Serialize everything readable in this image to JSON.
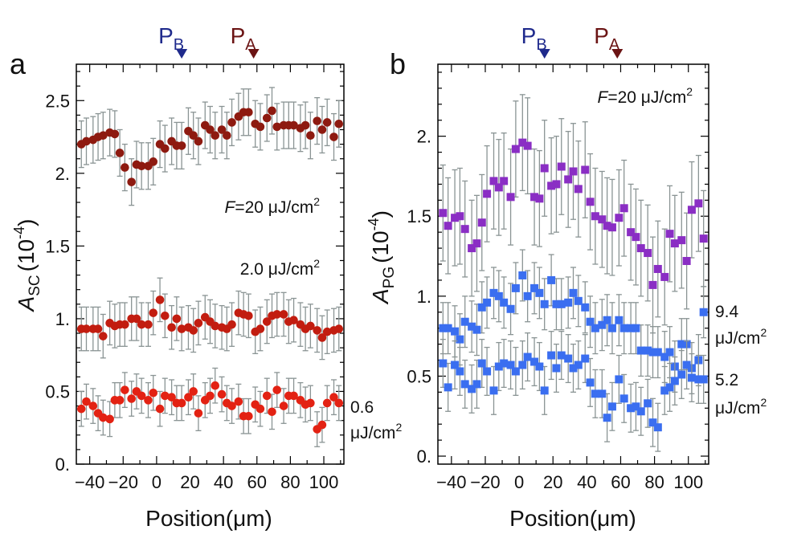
{
  "chart_data": [
    {
      "type": "scatter",
      "panel_label": "a",
      "xlabel": "Position(μm)",
      "ylabel_main": "A",
      "ylabel_sub": "SC",
      "ylabel_unit": "(10",
      "ylabel_exp": "-4",
      "ylabel_close": ")",
      "xlim": [
        -48,
        112
      ],
      "ylim": [
        0,
        2.75
      ],
      "xticks": [
        -40,
        -20,
        0,
        20,
        40,
        60,
        80,
        100
      ],
      "xtick_labels": [
        "−40",
        "−20",
        "0",
        "20",
        "40",
        "60",
        "80",
        "100"
      ],
      "yticks": [
        0,
        0.5,
        1,
        1.5,
        2,
        2.5
      ],
      "ytick_labels": [
        "0.",
        "0.5",
        "1.",
        "1.5",
        "2.",
        "2.5"
      ],
      "markers": [
        {
          "main": "P",
          "sub": "B",
          "x": 15,
          "color": "#1f2a8c"
        },
        {
          "main": "P",
          "sub": "A",
          "x": 58,
          "color": "#6b1414"
        }
      ],
      "annotations": [
        {
          "id": "f20",
          "prefix": "F",
          "text": "=20 μJ/cm",
          "sup": "2"
        },
        {
          "id": "f2",
          "text": "2.0 μJ/cm",
          "sup": "2"
        },
        {
          "id": "f06a",
          "text": "0.6"
        },
        {
          "id": "f06b",
          "text": "μJ/cm",
          "sup": "2"
        }
      ],
      "series": [
        {
          "name": "20 μJ/cm²",
          "marker": "circle",
          "color": "#8e1a10",
          "x": [
            -45,
            -42,
            -38,
            -35,
            -32,
            -28,
            -25,
            -22,
            -19,
            -15,
            -12,
            -9,
            -5,
            -2,
            2,
            5,
            9,
            12,
            15,
            19,
            22,
            25,
            29,
            32,
            35,
            39,
            42,
            45,
            49,
            52,
            55,
            59,
            62,
            66,
            69,
            72,
            76,
            79,
            82,
            86,
            89,
            92,
            96,
            99,
            102,
            106,
            109
          ],
          "y": [
            2.2,
            2.22,
            2.23,
            2.25,
            2.26,
            2.28,
            2.27,
            2.14,
            2.04,
            1.94,
            2.06,
            2.05,
            2.05,
            2.08,
            2.2,
            2.17,
            2.22,
            2.19,
            2.19,
            2.29,
            2.26,
            2.22,
            2.33,
            2.3,
            2.26,
            2.3,
            2.26,
            2.35,
            2.39,
            2.42,
            2.42,
            2.34,
            2.32,
            2.38,
            2.43,
            2.32,
            2.33,
            2.33,
            2.33,
            2.31,
            2.33,
            2.26,
            2.36,
            2.3,
            2.35,
            2.25,
            2.34
          ],
          "err": 0.16
        },
        {
          "name": "2.0 μJ/cm²",
          "marker": "circle",
          "color": "#c21d10",
          "x": [
            -45,
            -42,
            -38,
            -35,
            -32,
            -28,
            -25,
            -22,
            -19,
            -15,
            -12,
            -9,
            -5,
            -2,
            2,
            5,
            9,
            12,
            15,
            19,
            22,
            25,
            29,
            32,
            35,
            39,
            42,
            45,
            49,
            52,
            55,
            59,
            62,
            66,
            69,
            72,
            76,
            79,
            82,
            86,
            89,
            92,
            96,
            99,
            102,
            106,
            109
          ],
          "y": [
            0.93,
            0.93,
            0.93,
            0.93,
            0.88,
            0.97,
            0.95,
            0.96,
            0.96,
            1,
            1,
            0.96,
            0.96,
            1.04,
            1.13,
            1.02,
            0.94,
            1,
            0.93,
            0.94,
            0.92,
            0.97,
            1.01,
            0.98,
            0.95,
            0.94,
            0.93,
            0.96,
            1.04,
            1.03,
            1.02,
            0.91,
            0.93,
            0.98,
            1.02,
            1.03,
            1.03,
            0.98,
            0.99,
            0.96,
            0.93,
            0.95,
            0.92,
            0.87,
            0.91,
            0.92,
            0.93
          ],
          "err": 0.15
        },
        {
          "name": "0.6 μJ/cm²",
          "marker": "circle",
          "color": "#e32213",
          "x": [
            -45,
            -42,
            -38,
            -35,
            -32,
            -28,
            -25,
            -22,
            -19,
            -15,
            -12,
            -9,
            -5,
            -2,
            2,
            5,
            9,
            12,
            15,
            19,
            22,
            25,
            29,
            32,
            35,
            39,
            42,
            45,
            49,
            52,
            55,
            59,
            62,
            66,
            69,
            72,
            76,
            79,
            82,
            86,
            89,
            92,
            96,
            99,
            102,
            106,
            109
          ],
          "y": [
            0.38,
            0.43,
            0.4,
            0.35,
            0.32,
            0.31,
            0.44,
            0.44,
            0.51,
            0.45,
            0.5,
            0.47,
            0.44,
            0.49,
            0.38,
            0.47,
            0.46,
            0.42,
            0.42,
            0.46,
            0.5,
            0.35,
            0.44,
            0.47,
            0.54,
            0.48,
            0.42,
            0.4,
            0.43,
            0.33,
            0.33,
            0.41,
            0.38,
            0.47,
            0.36,
            0.51,
            0.4,
            0.47,
            0.47,
            0.44,
            0.41,
            0.42,
            0.24,
            0.27,
            0.42,
            0.46,
            0.42
          ],
          "err": 0.12
        }
      ]
    },
    {
      "type": "scatter",
      "panel_label": "b",
      "xlabel": "Position(μm)",
      "ylabel_main": "A",
      "ylabel_sub": "PG",
      "ylabel_unit": "(10",
      "ylabel_exp": "-4",
      "ylabel_close": ")",
      "xlim": [
        -48,
        112
      ],
      "ylim": [
        -0.05,
        2.45
      ],
      "xticks": [
        -40,
        -20,
        0,
        20,
        40,
        60,
        80,
        100
      ],
      "xtick_labels": [
        "−40",
        "−20",
        "0",
        "20",
        "40",
        "60",
        "80",
        "100"
      ],
      "yticks": [
        0,
        0.5,
        1,
        1.5,
        2
      ],
      "ytick_labels": [
        "0.",
        "0.5",
        "1.",
        "1.5",
        "2."
      ],
      "markers": [
        {
          "main": "P",
          "sub": "B",
          "x": 15,
          "color": "#1f2a8c"
        },
        {
          "main": "P",
          "sub": "A",
          "x": 58,
          "color": "#6b1414"
        }
      ],
      "annotations": [
        {
          "id": "f20",
          "prefix": "F",
          "text": "=20 μJ/cm",
          "sup": "2"
        },
        {
          "id": "f94a",
          "text": "9.4"
        },
        {
          "id": "f94b",
          "text": "μJ/cm",
          "sup": "2"
        },
        {
          "id": "f52a",
          "text": "5.2"
        },
        {
          "id": "f52b",
          "text": "μJ/cm",
          "sup": "2"
        }
      ],
      "series": [
        {
          "name": "20 μJ/cm²",
          "marker": "square",
          "color": "#8a2ec4",
          "x": [
            -45,
            -42,
            -38,
            -35,
            -32,
            -28,
            -25,
            -22,
            -19,
            -15,
            -12,
            -9,
            -5,
            -2,
            2,
            5,
            9,
            12,
            15,
            19,
            22,
            25,
            29,
            32,
            35,
            39,
            42,
            45,
            49,
            52,
            55,
            59,
            62,
            66,
            69,
            72,
            76,
            79,
            82,
            86,
            89,
            92,
            96,
            99,
            102,
            106,
            109
          ],
          "y": [
            1.52,
            1.44,
            1.49,
            1.5,
            1.42,
            1.3,
            1.33,
            1.46,
            1.64,
            1.72,
            1.68,
            1.72,
            1.62,
            1.92,
            1.96,
            1.94,
            1.62,
            1.61,
            1.8,
            1.69,
            1.7,
            1.81,
            1.73,
            1.78,
            1.67,
            1.79,
            1.59,
            1.5,
            1.48,
            1.44,
            1.43,
            1.49,
            1.55,
            1.4,
            1.37,
            1.3,
            1.27,
            1.07,
            1.17,
            1.12,
            1.39,
            1.33,
            1.35,
            1.22,
            1.54,
            1.58,
            1.36
          ],
          "err": 0.3
        },
        {
          "name": "9.4 μJ/cm²",
          "marker": "square",
          "color": "#3a6ef0",
          "x": [
            -45,
            -42,
            -38,
            -35,
            -32,
            -28,
            -25,
            -22,
            -19,
            -15,
            -12,
            -9,
            -5,
            -2,
            2,
            5,
            9,
            12,
            15,
            19,
            22,
            25,
            29,
            32,
            35,
            39,
            42,
            45,
            49,
            52,
            55,
            59,
            62,
            66,
            69,
            72,
            76,
            79,
            82,
            86,
            89,
            92,
            96,
            99,
            102,
            106,
            109
          ],
          "y": [
            0.8,
            0.8,
            0.78,
            0.73,
            0.84,
            0.81,
            0.79,
            0.93,
            0.96,
            1.02,
            1,
            0.96,
            0.92,
            1.05,
            1.13,
            1,
            1.05,
            1.02,
            0.95,
            1.1,
            0.95,
            0.95,
            0.96,
            1.02,
            0.97,
            0.93,
            0.84,
            0.8,
            0.82,
            0.85,
            0.8,
            0.85,
            0.8,
            0.8,
            0.8,
            0.66,
            0.66,
            0.65,
            0.65,
            0.62,
            0.65,
            0.56,
            0.7,
            0.7,
            0.55,
            0.6,
            0.9
          ],
          "err": 0.16
        },
        {
          "name": "5.2 μJ/cm²",
          "marker": "square",
          "color": "#3a6ef0",
          "x": [
            -45,
            -42,
            -38,
            -35,
            -32,
            -28,
            -25,
            -22,
            -19,
            -15,
            -12,
            -9,
            -5,
            -2,
            2,
            5,
            9,
            12,
            15,
            19,
            22,
            25,
            29,
            32,
            35,
            39,
            42,
            45,
            49,
            52,
            55,
            59,
            62,
            66,
            69,
            72,
            76,
            79,
            82,
            86,
            89,
            92,
            96,
            99,
            102,
            106,
            109
          ],
          "y": [
            0.58,
            0.43,
            0.57,
            0.53,
            0.45,
            0.42,
            0.45,
            0.58,
            0.53,
            0.41,
            0.56,
            0.58,
            0.57,
            0.53,
            0.57,
            0.62,
            0.59,
            0.56,
            0.41,
            0.63,
            0.55,
            0.63,
            0.61,
            0.55,
            0.57,
            0.61,
            0.46,
            0.39,
            0.39,
            0.24,
            0.31,
            0.48,
            0.36,
            0.3,
            0.31,
            0.28,
            0.33,
            0.21,
            0.18,
            0.41,
            0.43,
            0.47,
            0.51,
            0.57,
            0.49,
            0.48,
            0.48
          ],
          "err": 0.15
        }
      ]
    }
  ]
}
